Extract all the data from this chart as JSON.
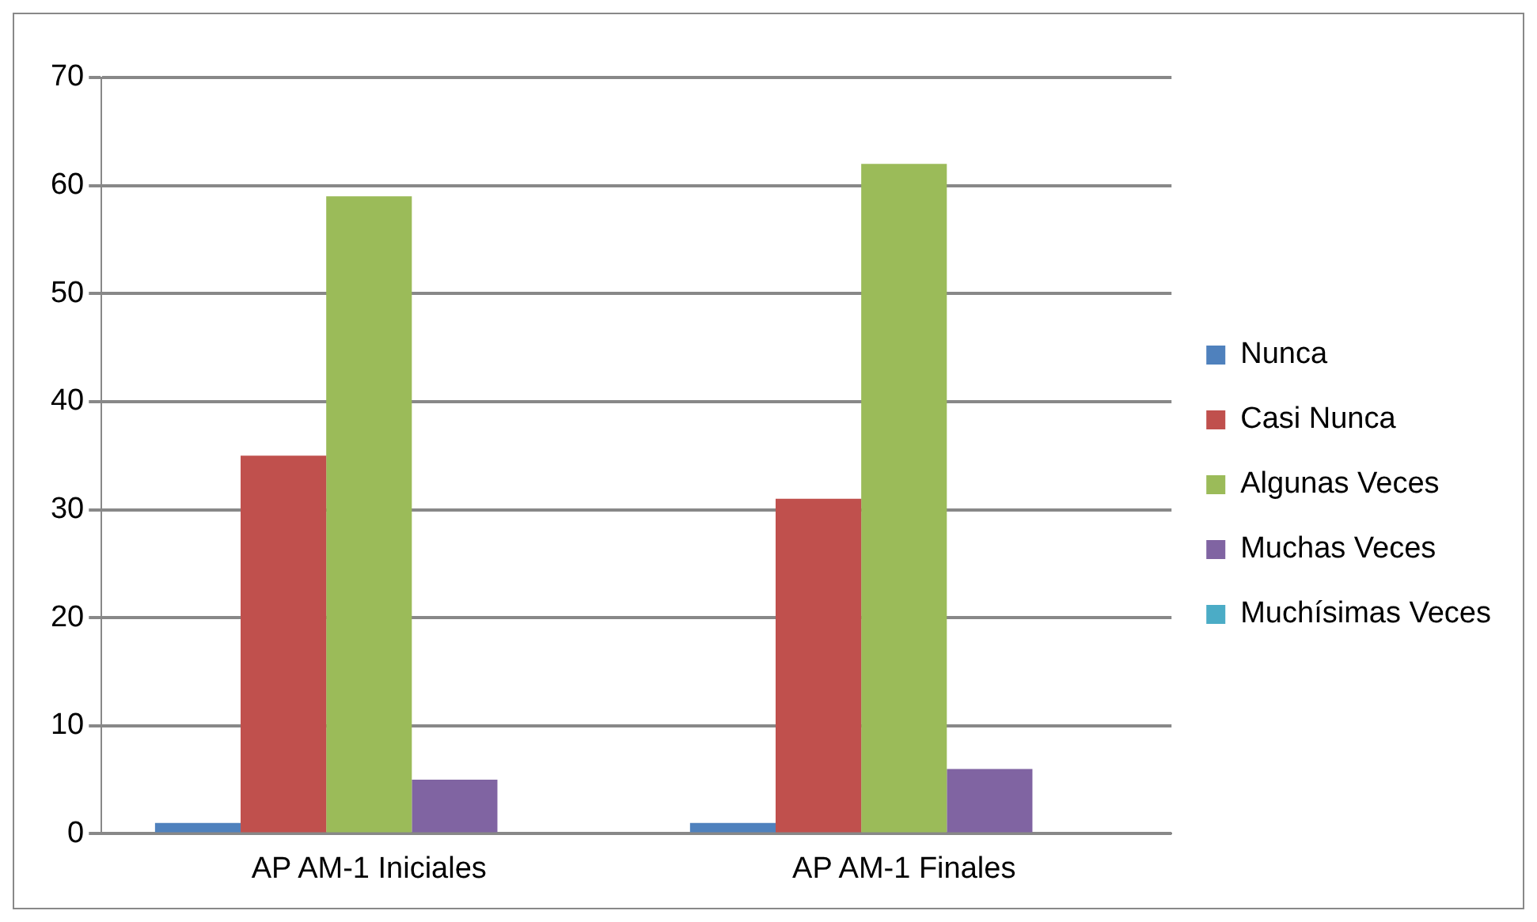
{
  "chart_data": {
    "type": "bar",
    "categories": [
      "AP AM-1 Iniciales",
      "AP AM-1 Finales"
    ],
    "series": [
      {
        "name": "Nunca",
        "color": "#4f81bd",
        "values": [
          1,
          1
        ]
      },
      {
        "name": "Casi Nunca",
        "color": "#c0504d",
        "values": [
          35,
          31
        ]
      },
      {
        "name": "Algunas Veces",
        "color": "#9bbb59",
        "values": [
          59,
          62
        ]
      },
      {
        "name": "Muchas Veces",
        "color": "#8064a2",
        "values": [
          5,
          6
        ]
      },
      {
        "name": "Muchísimas Veces",
        "color": "#4bacc6",
        "values": [
          0,
          0
        ]
      }
    ],
    "ylim": [
      0,
      70
    ],
    "yticks": [
      0,
      10,
      20,
      30,
      40,
      50,
      60,
      70
    ],
    "grid": "y",
    "legend": "right"
  }
}
